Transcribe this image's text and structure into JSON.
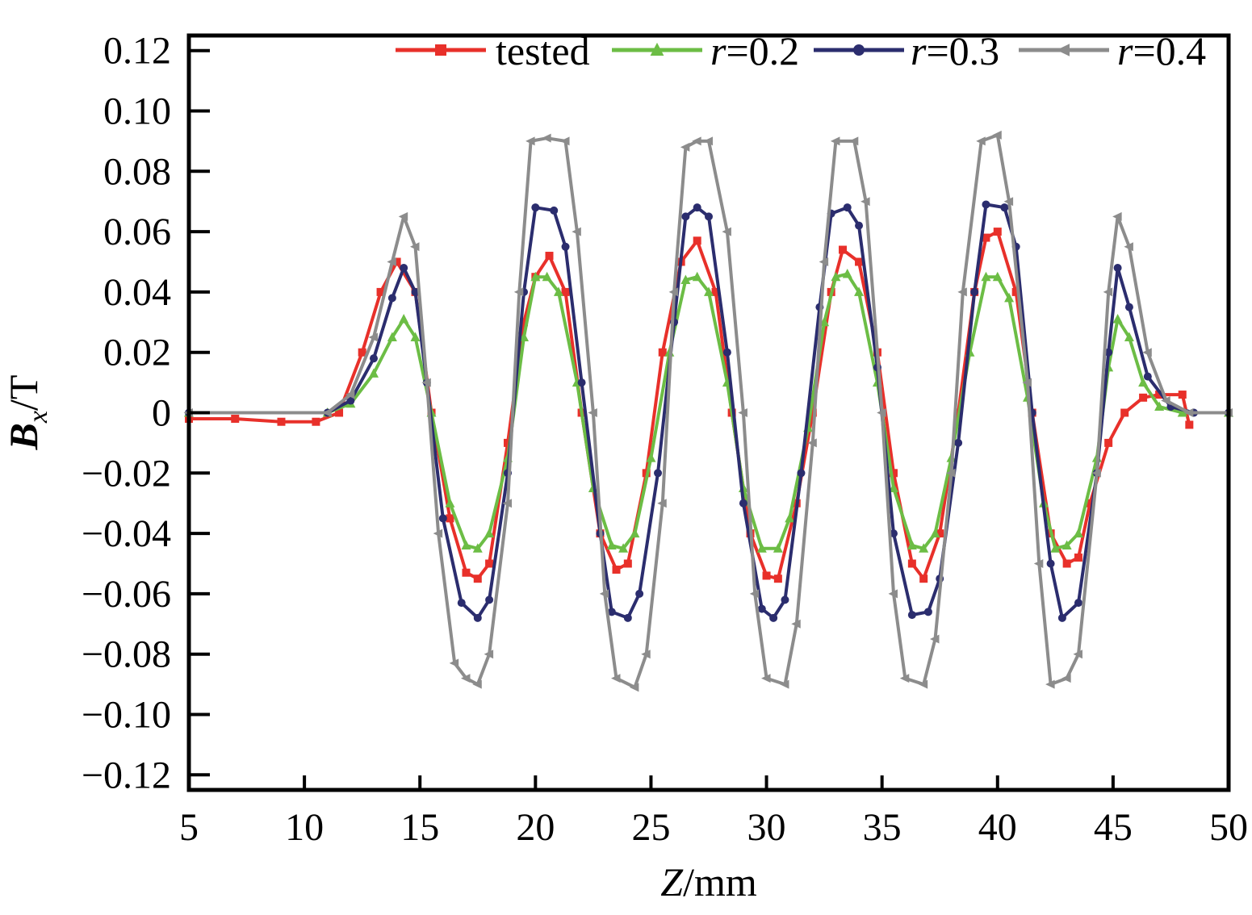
{
  "chart_data": {
    "type": "line",
    "xlabel": {
      "var": "Z",
      "unit": "/mm"
    },
    "ylabel": {
      "var": "B",
      "sub": "x",
      "unit": "/T"
    },
    "xlim": [
      5,
      50
    ],
    "ylim": [
      -0.125,
      0.125
    ],
    "x_ticks": [
      {
        "value": 5,
        "label": "5"
      },
      {
        "value": 10,
        "label": "10"
      },
      {
        "value": 15,
        "label": "15"
      },
      {
        "value": 20,
        "label": "20"
      },
      {
        "value": 25,
        "label": "25"
      },
      {
        "value": 30,
        "label": "30"
      },
      {
        "value": 35,
        "label": "35"
      },
      {
        "value": 40,
        "label": "40"
      },
      {
        "value": 45,
        "label": "45"
      },
      {
        "value": 50,
        "label": "50"
      }
    ],
    "y_ticks": [
      {
        "value": 0.12,
        "label": "0.12"
      },
      {
        "value": 0.1,
        "label": "0.10"
      },
      {
        "value": 0.08,
        "label": "0.08"
      },
      {
        "value": 0.06,
        "label": "0.06"
      },
      {
        "value": 0.04,
        "label": "0.04"
      },
      {
        "value": 0.02,
        "label": "0.02"
      },
      {
        "value": 0,
        "label": "0"
      },
      {
        "value": -0.02,
        "label": "−0.02"
      },
      {
        "value": -0.04,
        "label": "−0.04"
      },
      {
        "value": -0.06,
        "label": "−0.06"
      },
      {
        "value": -0.08,
        "label": "−0.08"
      },
      {
        "value": -0.1,
        "label": "−0.10"
      },
      {
        "value": -0.12,
        "label": "−0.12"
      }
    ],
    "grid": false,
    "legend_position": "top-right",
    "series": [
      {
        "name": "tested",
        "name_var": "",
        "name_rest": "tested",
        "color": "#e8302a",
        "marker": "square",
        "points": [
          [
            5,
            -0.002
          ],
          [
            7,
            -0.002
          ],
          [
            9,
            -0.003
          ],
          [
            10.5,
            -0.003
          ],
          [
            11.5,
            0.0
          ],
          [
            12.5,
            0.02
          ],
          [
            13.3,
            0.04
          ],
          [
            14,
            0.05
          ],
          [
            14.8,
            0.04
          ],
          [
            15.5,
            0.0
          ],
          [
            16.3,
            -0.035
          ],
          [
            17,
            -0.053
          ],
          [
            17.5,
            -0.055
          ],
          [
            18,
            -0.05
          ],
          [
            18.8,
            -0.01
          ],
          [
            19.5,
            0.03
          ],
          [
            20,
            0.045
          ],
          [
            20.6,
            0.052
          ],
          [
            21.3,
            0.04
          ],
          [
            22,
            0.0
          ],
          [
            22.8,
            -0.04
          ],
          [
            23.5,
            -0.052
          ],
          [
            24,
            -0.05
          ],
          [
            24.8,
            -0.02
          ],
          [
            25.5,
            0.02
          ],
          [
            26.3,
            0.05
          ],
          [
            27,
            0.057
          ],
          [
            27.8,
            0.04
          ],
          [
            28.5,
            0.0
          ],
          [
            29.3,
            -0.04
          ],
          [
            30,
            -0.054
          ],
          [
            30.5,
            -0.055
          ],
          [
            31.3,
            -0.03
          ],
          [
            32,
            0.0
          ],
          [
            32.8,
            0.04
          ],
          [
            33.3,
            0.054
          ],
          [
            34,
            0.05
          ],
          [
            34.8,
            0.02
          ],
          [
            35.5,
            -0.02
          ],
          [
            36.3,
            -0.05
          ],
          [
            36.8,
            -0.055
          ],
          [
            37.5,
            -0.04
          ],
          [
            38.3,
            0.0
          ],
          [
            39,
            0.04
          ],
          [
            39.5,
            0.058
          ],
          [
            40,
            0.06
          ],
          [
            40.8,
            0.04
          ],
          [
            41.5,
            0.0
          ],
          [
            42.3,
            -0.04
          ],
          [
            43,
            -0.05
          ],
          [
            43.5,
            -0.048
          ],
          [
            44,
            -0.03
          ],
          [
            44.8,
            -0.01
          ],
          [
            45.5,
            0.0
          ],
          [
            46.3,
            0.005
          ],
          [
            47,
            0.006
          ],
          [
            48,
            0.006
          ],
          [
            48.3,
            -0.004
          ]
        ]
      },
      {
        "name": "r=0.2",
        "name_var": "r",
        "name_rest": "=0.2",
        "color": "#6cbd45",
        "marker": "triangle",
        "points": [
          [
            5,
            0.0
          ],
          [
            11,
            0.0
          ],
          [
            12,
            0.003
          ],
          [
            13,
            0.013
          ],
          [
            13.8,
            0.025
          ],
          [
            14.3,
            0.031
          ],
          [
            14.8,
            0.025
          ],
          [
            15.5,
            0.0
          ],
          [
            16.3,
            -0.03
          ],
          [
            17,
            -0.044
          ],
          [
            17.5,
            -0.045
          ],
          [
            18,
            -0.04
          ],
          [
            18.8,
            -0.015
          ],
          [
            19.5,
            0.025
          ],
          [
            20,
            0.045
          ],
          [
            20.5,
            0.045
          ],
          [
            21,
            0.04
          ],
          [
            21.8,
            0.01
          ],
          [
            22.5,
            -0.025
          ],
          [
            23.3,
            -0.044
          ],
          [
            23.8,
            -0.045
          ],
          [
            24.3,
            -0.04
          ],
          [
            25,
            -0.015
          ],
          [
            25.8,
            0.02
          ],
          [
            26.5,
            0.044
          ],
          [
            27,
            0.045
          ],
          [
            27.5,
            0.04
          ],
          [
            28.3,
            0.01
          ],
          [
            29,
            -0.025
          ],
          [
            29.8,
            -0.045
          ],
          [
            30.5,
            -0.045
          ],
          [
            31,
            -0.035
          ],
          [
            31.8,
            -0.005
          ],
          [
            32.5,
            0.03
          ],
          [
            33,
            0.045
          ],
          [
            33.5,
            0.046
          ],
          [
            34,
            0.04
          ],
          [
            34.8,
            0.01
          ],
          [
            35.5,
            -0.025
          ],
          [
            36.3,
            -0.044
          ],
          [
            36.8,
            -0.045
          ],
          [
            37.3,
            -0.04
          ],
          [
            38,
            -0.015
          ],
          [
            38.8,
            0.02
          ],
          [
            39.5,
            0.045
          ],
          [
            40,
            0.045
          ],
          [
            40.5,
            0.038
          ],
          [
            41.3,
            0.005
          ],
          [
            42,
            -0.03
          ],
          [
            42.5,
            -0.045
          ],
          [
            43,
            -0.044
          ],
          [
            43.5,
            -0.04
          ],
          [
            44.3,
            -0.015
          ],
          [
            44.8,
            0.015
          ],
          [
            45.2,
            0.031
          ],
          [
            45.7,
            0.025
          ],
          [
            46.3,
            0.01
          ],
          [
            47,
            0.002
          ],
          [
            48,
            0.0
          ],
          [
            50,
            0.0
          ]
        ]
      },
      {
        "name": "r=0.3",
        "name_var": "r",
        "name_rest": "=0.3",
        "color": "#2b2d6e",
        "marker": "circle",
        "points": [
          [
            5,
            0.0
          ],
          [
            11,
            0.0
          ],
          [
            12,
            0.004
          ],
          [
            13,
            0.018
          ],
          [
            13.8,
            0.038
          ],
          [
            14.3,
            0.048
          ],
          [
            14.8,
            0.04
          ],
          [
            15.3,
            0.01
          ],
          [
            16,
            -0.035
          ],
          [
            16.8,
            -0.063
          ],
          [
            17.5,
            -0.068
          ],
          [
            18,
            -0.062
          ],
          [
            18.8,
            -0.02
          ],
          [
            19.5,
            0.04
          ],
          [
            20,
            0.068
          ],
          [
            20.8,
            0.067
          ],
          [
            21.3,
            0.055
          ],
          [
            22,
            0.01
          ],
          [
            22.8,
            -0.04
          ],
          [
            23.3,
            -0.066
          ],
          [
            24,
            -0.068
          ],
          [
            24.5,
            -0.06
          ],
          [
            25.3,
            -0.02
          ],
          [
            26,
            0.03
          ],
          [
            26.5,
            0.065
          ],
          [
            27,
            0.068
          ],
          [
            27.5,
            0.065
          ],
          [
            28.3,
            0.02
          ],
          [
            29,
            -0.03
          ],
          [
            29.8,
            -0.065
          ],
          [
            30.3,
            -0.068
          ],
          [
            30.8,
            -0.062
          ],
          [
            31.5,
            -0.02
          ],
          [
            32.3,
            0.035
          ],
          [
            32.8,
            0.066
          ],
          [
            33.5,
            0.068
          ],
          [
            34,
            0.062
          ],
          [
            34.8,
            0.015
          ],
          [
            35.5,
            -0.04
          ],
          [
            36.3,
            -0.067
          ],
          [
            37,
            -0.066
          ],
          [
            37.5,
            -0.055
          ],
          [
            38.3,
            -0.01
          ],
          [
            39,
            0.04
          ],
          [
            39.5,
            0.069
          ],
          [
            40.3,
            0.068
          ],
          [
            40.8,
            0.055
          ],
          [
            41.5,
            0.0
          ],
          [
            42.3,
            -0.05
          ],
          [
            42.8,
            -0.068
          ],
          [
            43.5,
            -0.063
          ],
          [
            44.3,
            -0.02
          ],
          [
            44.8,
            0.02
          ],
          [
            45.2,
            0.048
          ],
          [
            45.7,
            0.035
          ],
          [
            46.5,
            0.012
          ],
          [
            47.5,
            0.002
          ],
          [
            48.5,
            0.0
          ],
          [
            50,
            0.0
          ]
        ]
      },
      {
        "name": "r=0.4",
        "name_var": "r",
        "name_rest": "=0.4",
        "color": "#8c8c8c",
        "marker": "arrow-left",
        "points": [
          [
            5,
            0.0
          ],
          [
            11,
            0.0
          ],
          [
            12,
            0.006
          ],
          [
            13,
            0.025
          ],
          [
            13.8,
            0.05
          ],
          [
            14.3,
            0.065
          ],
          [
            14.8,
            0.055
          ],
          [
            15.3,
            0.01
          ],
          [
            15.8,
            -0.04
          ],
          [
            16.5,
            -0.083
          ],
          [
            17,
            -0.088
          ],
          [
            17.5,
            -0.09
          ],
          [
            18,
            -0.08
          ],
          [
            18.8,
            -0.03
          ],
          [
            19.3,
            0.04
          ],
          [
            19.8,
            0.09
          ],
          [
            20.5,
            0.091
          ],
          [
            21.3,
            0.09
          ],
          [
            21.8,
            0.06
          ],
          [
            22.5,
            0.0
          ],
          [
            23,
            -0.06
          ],
          [
            23.5,
            -0.088
          ],
          [
            24.3,
            -0.091
          ],
          [
            24.8,
            -0.08
          ],
          [
            25.5,
            -0.03
          ],
          [
            26,
            0.04
          ],
          [
            26.5,
            0.088
          ],
          [
            27,
            0.09
          ],
          [
            27.5,
            0.09
          ],
          [
            28.3,
            0.06
          ],
          [
            29,
            0.0
          ],
          [
            29.5,
            -0.06
          ],
          [
            30,
            -0.088
          ],
          [
            30.8,
            -0.09
          ],
          [
            31.3,
            -0.07
          ],
          [
            32,
            -0.01
          ],
          [
            32.5,
            0.05
          ],
          [
            33,
            0.09
          ],
          [
            33.8,
            0.09
          ],
          [
            34.3,
            0.07
          ],
          [
            35,
            0.0
          ],
          [
            35.5,
            -0.06
          ],
          [
            36,
            -0.088
          ],
          [
            36.8,
            -0.09
          ],
          [
            37.3,
            -0.075
          ],
          [
            38,
            -0.02
          ],
          [
            38.5,
            0.04
          ],
          [
            39.3,
            0.09
          ],
          [
            40,
            0.092
          ],
          [
            40.5,
            0.07
          ],
          [
            41.3,
            0.01
          ],
          [
            41.8,
            -0.05
          ],
          [
            42.3,
            -0.09
          ],
          [
            43,
            -0.088
          ],
          [
            43.5,
            -0.08
          ],
          [
            44.3,
            -0.02
          ],
          [
            44.8,
            0.04
          ],
          [
            45.2,
            0.065
          ],
          [
            45.7,
            0.055
          ],
          [
            46.5,
            0.02
          ],
          [
            47.3,
            0.004
          ],
          [
            48.3,
            0.0
          ],
          [
            50,
            0.0
          ]
        ]
      }
    ]
  }
}
